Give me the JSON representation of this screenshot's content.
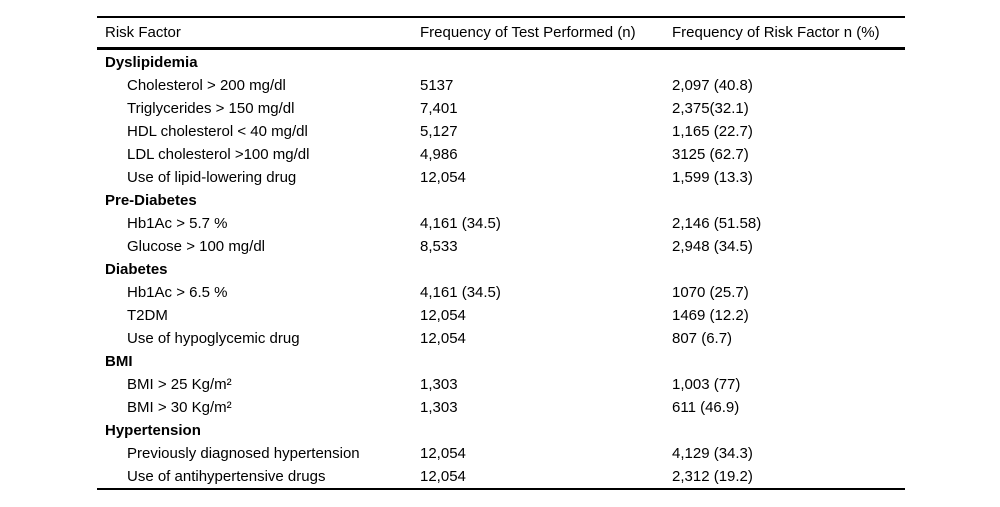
{
  "colors": {
    "background": "#ffffff",
    "text": "#000000",
    "rule": "#000000"
  },
  "table": {
    "columns": [
      "Risk Factor",
      "Frequency of Test Performed (n)",
      "Frequency of Risk Factor n (%)"
    ],
    "sections": [
      {
        "header": "Dyslipidemia",
        "rows": [
          [
            "Cholesterol > 200 mg/dl",
            "5137",
            "2,097 (40.8)"
          ],
          [
            "Triglycerides > 150 mg/dl",
            "7,401",
            "2,375(32.1)"
          ],
          [
            "HDL cholesterol < 40 mg/dl",
            "5,127",
            "1,165 (22.7)"
          ],
          [
            "LDL cholesterol >100 mg/dl",
            "4,986",
            "3125 (62.7)"
          ],
          [
            "Use of lipid-lowering drug",
            "12,054",
            "1,599 (13.3)"
          ]
        ]
      },
      {
        "header": "Pre-Diabetes",
        "rows": [
          [
            "Hb1Ac > 5.7 %",
            "4,161 (34.5)",
            "2,146 (51.58)"
          ],
          [
            "Glucose > 100 mg/dl",
            "8,533",
            "2,948 (34.5)"
          ]
        ]
      },
      {
        "header": "Diabetes",
        "rows": [
          [
            "Hb1Ac > 6.5 %",
            "4,161 (34.5)",
            "1070 (25.7)"
          ],
          [
            "T2DM",
            "12,054",
            "1469 (12.2)"
          ],
          [
            "Use of hypoglycemic drug",
            "12,054",
            "807 (6.7)"
          ]
        ]
      },
      {
        "header": "BMI",
        "rows": [
          [
            "BMI > 25 Kg/m²",
            "1,303",
            "1,003 (77)"
          ],
          [
            "BMI > 30 Kg/m²",
            "1,303",
            "611 (46.9)"
          ]
        ]
      },
      {
        "header": "Hypertension",
        "rows": [
          [
            "Previously diagnosed hypertension",
            "12,054",
            "4,129 (34.3)"
          ],
          [
            "Use of antihypertensive drugs",
            "12,054",
            "2,312 (19.2)"
          ]
        ]
      }
    ]
  },
  "chart_data": {
    "type": "table",
    "title": "",
    "columns": [
      "Risk Factor",
      "Frequency of Test Performed (n)",
      "Frequency of Risk Factor n (%)"
    ],
    "rows": [
      [
        "Dyslipidemia",
        "",
        ""
      ],
      [
        "Cholesterol > 200 mg/dl",
        "5137",
        "2,097 (40.8)"
      ],
      [
        "Triglycerides > 150 mg/dl",
        "7,401",
        "2,375(32.1)"
      ],
      [
        "HDL cholesterol < 40 mg/dl",
        "5,127",
        "1,165 (22.7)"
      ],
      [
        "LDL cholesterol >100 mg/dl",
        "4,986",
        "3125 (62.7)"
      ],
      [
        "Use of lipid-lowering drug",
        "12,054",
        "1,599 (13.3)"
      ],
      [
        "Pre-Diabetes",
        "",
        ""
      ],
      [
        "Hb1Ac > 5.7 %",
        "4,161 (34.5)",
        "2,146 (51.58)"
      ],
      [
        "Glucose > 100 mg/dl",
        "8,533",
        "2,948 (34.5)"
      ],
      [
        "Diabetes",
        "",
        ""
      ],
      [
        "Hb1Ac > 6.5 %",
        "4,161 (34.5)",
        "1070 (25.7)"
      ],
      [
        "T2DM",
        "12,054",
        "1469 (12.2)"
      ],
      [
        "Use of hypoglycemic drug",
        "12,054",
        "807 (6.7)"
      ],
      [
        "BMI",
        "",
        ""
      ],
      [
        "BMI > 25 Kg/m²",
        "1,303",
        "1,003 (77)"
      ],
      [
        "BMI > 30 Kg/m²",
        "1,303",
        "611 (46.9)"
      ],
      [
        "Hypertension",
        "",
        ""
      ],
      [
        "Previously diagnosed hypertension",
        "12,054",
        "4,129 (34.3)"
      ],
      [
        "Use of antihypertensive drugs",
        "12,054",
        "2,312 (19.2)"
      ]
    ]
  }
}
